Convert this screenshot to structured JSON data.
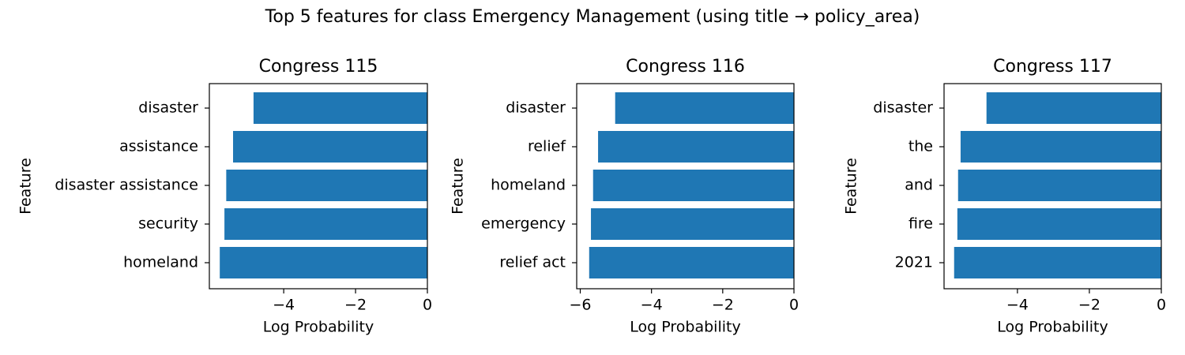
{
  "title": "Top 5 features for class Emergency Management (using title → policy_area)",
  "chart_data": [
    {
      "type": "barh",
      "title": "Congress 115",
      "xlabel": "Log Probability",
      "ylabel": "Feature",
      "categories": [
        "disaster",
        "assistance",
        "disaster assistance",
        "security",
        "homeland"
      ],
      "values": [
        -4.84,
        -5.41,
        -5.6,
        -5.65,
        -5.78
      ],
      "color": "#1f77b4",
      "xlim": [
        -6.07,
        0
      ],
      "xticks": [
        {
          "value": -4,
          "label": "−4"
        },
        {
          "value": -2,
          "label": "−2"
        },
        0
      ]
    },
    {
      "type": "barh",
      "title": "Congress 116",
      "xlabel": "Log Probability",
      "ylabel": "Feature",
      "categories": [
        "disaster",
        "relief",
        "homeland",
        "emergency",
        "relief act"
      ],
      "values": [
        -5.02,
        -5.5,
        -5.64,
        -5.7,
        -5.75
      ],
      "color": "#1f77b4",
      "xlim": [
        -6.1,
        0
      ],
      "xticks": [
        {
          "value": -6,
          "label": "−6"
        },
        {
          "value": -4,
          "label": "−4"
        },
        {
          "value": -2,
          "label": "−2"
        },
        0
      ]
    },
    {
      "type": "barh",
      "title": "Congress 117",
      "xlabel": "Log Probability",
      "ylabel": "Feature",
      "categories": [
        "disaster",
        "the",
        "and",
        "fire",
        "2021"
      ],
      "values": [
        -4.86,
        -5.58,
        -5.65,
        -5.67,
        -5.76
      ],
      "color": "#1f77b4",
      "xlim": [
        -6.04,
        0
      ],
      "xticks": [
        {
          "value": -4,
          "label": "−4"
        },
        {
          "value": -2,
          "label": "−2"
        },
        0
      ]
    }
  ]
}
